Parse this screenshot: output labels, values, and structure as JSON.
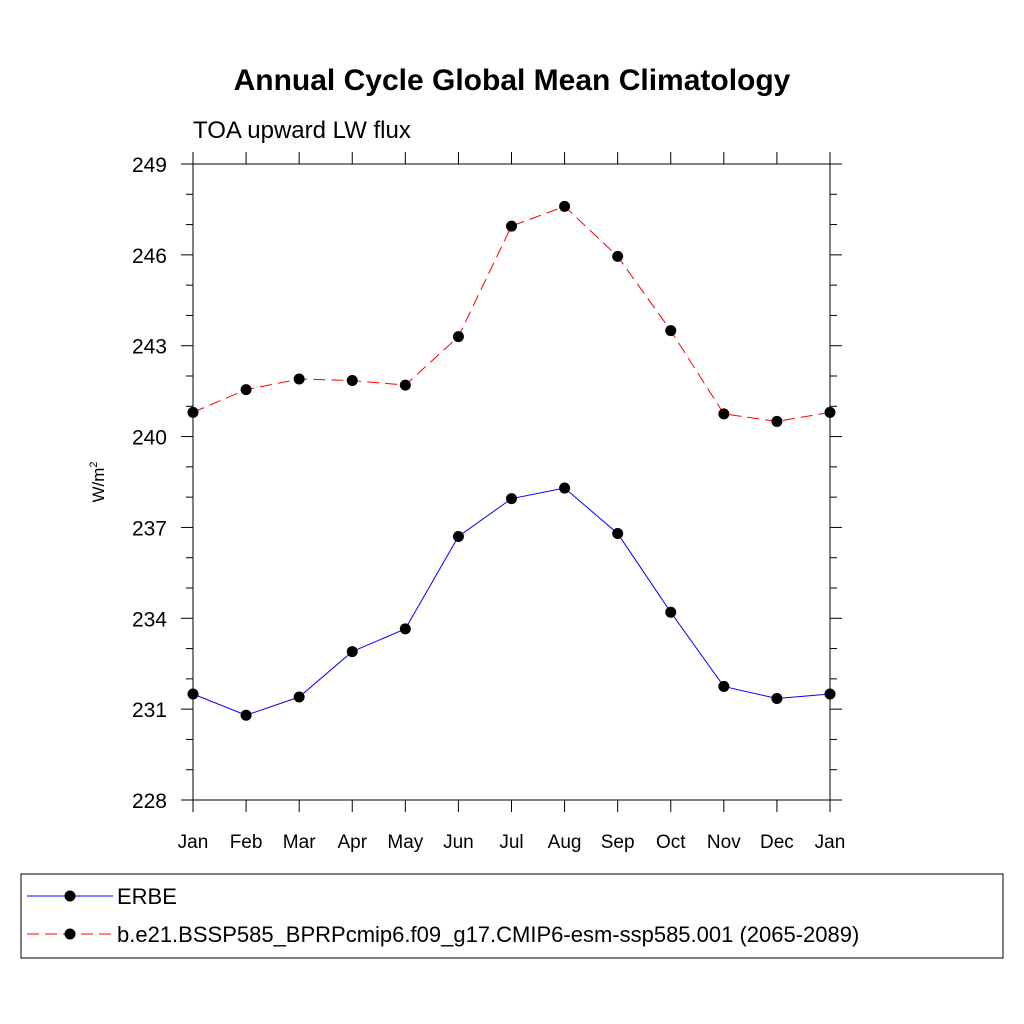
{
  "chart_data": {
    "type": "line",
    "title": "Annual Cycle Global Mean Climatology",
    "subtitle": "TOA upward LW flux",
    "xlabel": "",
    "ylabel_base": "W/m",
    "ylabel_sup": "2",
    "categories": [
      "Jan",
      "Feb",
      "Mar",
      "Apr",
      "May",
      "Jun",
      "Jul",
      "Aug",
      "Sep",
      "Oct",
      "Nov",
      "Dec",
      "Jan"
    ],
    "ylim": [
      228,
      249
    ],
    "yticks": [
      "228",
      "231",
      "234",
      "237",
      "240",
      "243",
      "246",
      "249"
    ],
    "ytick_values": [
      228,
      231,
      234,
      237,
      240,
      243,
      246,
      249
    ],
    "series": [
      {
        "name": "ERBE",
        "color": "#0000ff",
        "dash": "solid",
        "values": [
          231.5,
          230.8,
          231.4,
          232.9,
          233.65,
          236.7,
          237.95,
          238.3,
          236.8,
          234.2,
          231.75,
          231.35,
          231.5
        ]
      },
      {
        "name": "b.e21.BSSP585_BPRPcmip6.f09_g17.CMIP6-esm-ssp585.001 (2065-2089)",
        "color": "#ff0000",
        "dash": "dashed",
        "values": [
          240.8,
          241.55,
          241.9,
          241.85,
          241.7,
          243.3,
          246.95,
          247.6,
          245.95,
          243.5,
          240.75,
          240.5,
          240.8
        ]
      }
    ],
    "legend_position": "bottom"
  }
}
